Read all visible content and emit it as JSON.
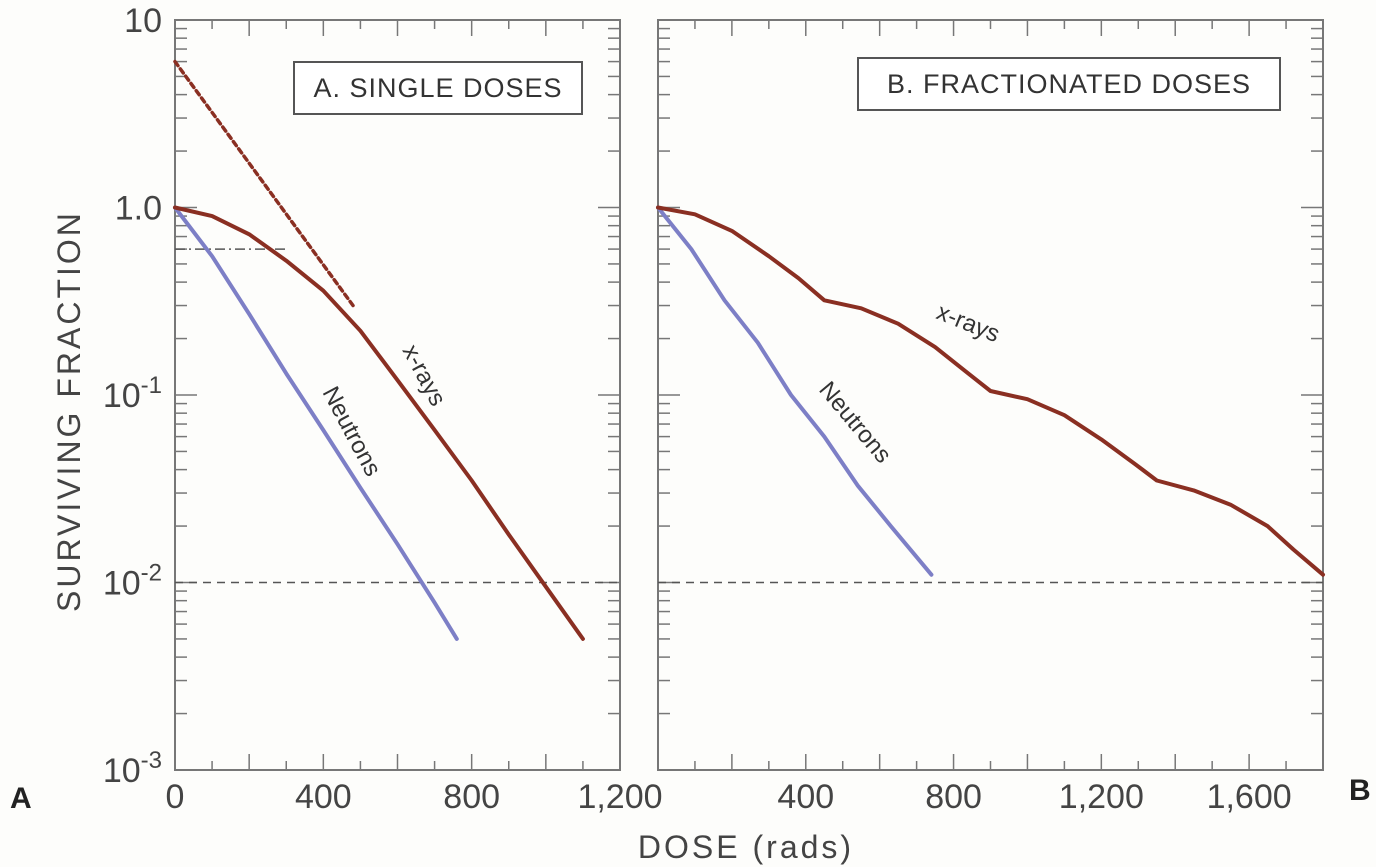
{
  "chart_data": [
    {
      "type": "line",
      "panel_id": "A",
      "title": "A. SINGLE DOSES",
      "xlabel": "DOSE (rads)",
      "ylabel": "SURVIVING FRACTION",
      "xlim": [
        0,
        1200
      ],
      "ylim": [
        0.001,
        10
      ],
      "yscale": "log",
      "x_ticks": [
        "0",
        "400",
        "800",
        "1,200"
      ],
      "y_ticks": [
        "10^-3",
        "10^-2",
        "10^-1",
        "1.0",
        "10"
      ],
      "series": [
        {
          "label": "Neutrons",
          "color": "#7d7fc6",
          "style": "solid",
          "x": [
            0,
            100,
            200,
            300,
            400,
            500,
            600,
            700,
            760
          ],
          "y": [
            1.0,
            0.55,
            0.27,
            0.13,
            0.065,
            0.032,
            0.016,
            0.0078,
            0.005
          ]
        },
        {
          "label": "x-rays",
          "color": "#8a2f22",
          "style": "solid",
          "x": [
            0,
            100,
            200,
            300,
            400,
            500,
            600,
            700,
            800,
            900,
            1000,
            1100
          ],
          "y": [
            1.0,
            0.9,
            0.72,
            0.52,
            0.36,
            0.22,
            0.12,
            0.065,
            0.035,
            0.018,
            0.0095,
            0.005
          ]
        },
        {
          "label": "",
          "color": "#8a2f22",
          "style": "dotted",
          "x": [
            0,
            480
          ],
          "y": [
            6.0,
            0.3
          ]
        }
      ],
      "reference_lines": [
        {
          "style": "dashed",
          "y": 0.01,
          "x": [
            0,
            1200
          ]
        },
        {
          "style": "dash-dot",
          "y": 0.6,
          "x": [
            0,
            300
          ]
        }
      ]
    },
    {
      "type": "line",
      "panel_id": "B",
      "title": "B. FRACTIONATED DOSES",
      "xlabel": "DOSE (rads)",
      "xlim": [
        0,
        1800
      ],
      "ylim": [
        0.001,
        10
      ],
      "yscale": "log",
      "x_ticks": [
        "400",
        "800",
        "1,200",
        "1,600"
      ],
      "series": [
        {
          "label": "Neutrons",
          "color": "#7d7fc6",
          "style": "solid",
          "x": [
            0,
            90,
            180,
            270,
            360,
            450,
            540,
            630,
            740
          ],
          "y": [
            1.0,
            0.6,
            0.32,
            0.19,
            0.1,
            0.06,
            0.033,
            0.02,
            0.011
          ]
        },
        {
          "label": "x-rays",
          "color": "#8a2f22",
          "style": "solid",
          "x": [
            0,
            100,
            200,
            300,
            380,
            450,
            550,
            650,
            750,
            830,
            900,
            1000,
            1100,
            1200,
            1290,
            1350,
            1450,
            1550,
            1650,
            1720,
            1800
          ],
          "y": [
            1.0,
            0.92,
            0.75,
            0.55,
            0.42,
            0.32,
            0.29,
            0.24,
            0.18,
            0.135,
            0.105,
            0.095,
            0.078,
            0.058,
            0.043,
            0.035,
            0.031,
            0.026,
            0.02,
            0.015,
            0.011
          ]
        }
      ],
      "reference_lines": [
        {
          "style": "dashed",
          "y": 0.01,
          "x": [
            0,
            1800
          ]
        }
      ]
    }
  ],
  "corner_labels": {
    "left": "A",
    "right": "B"
  },
  "colors": {
    "xrays": "#8a2f22",
    "neutrons": "#7d7fc6",
    "frame": "#777777",
    "background": "#fdfdfb"
  }
}
